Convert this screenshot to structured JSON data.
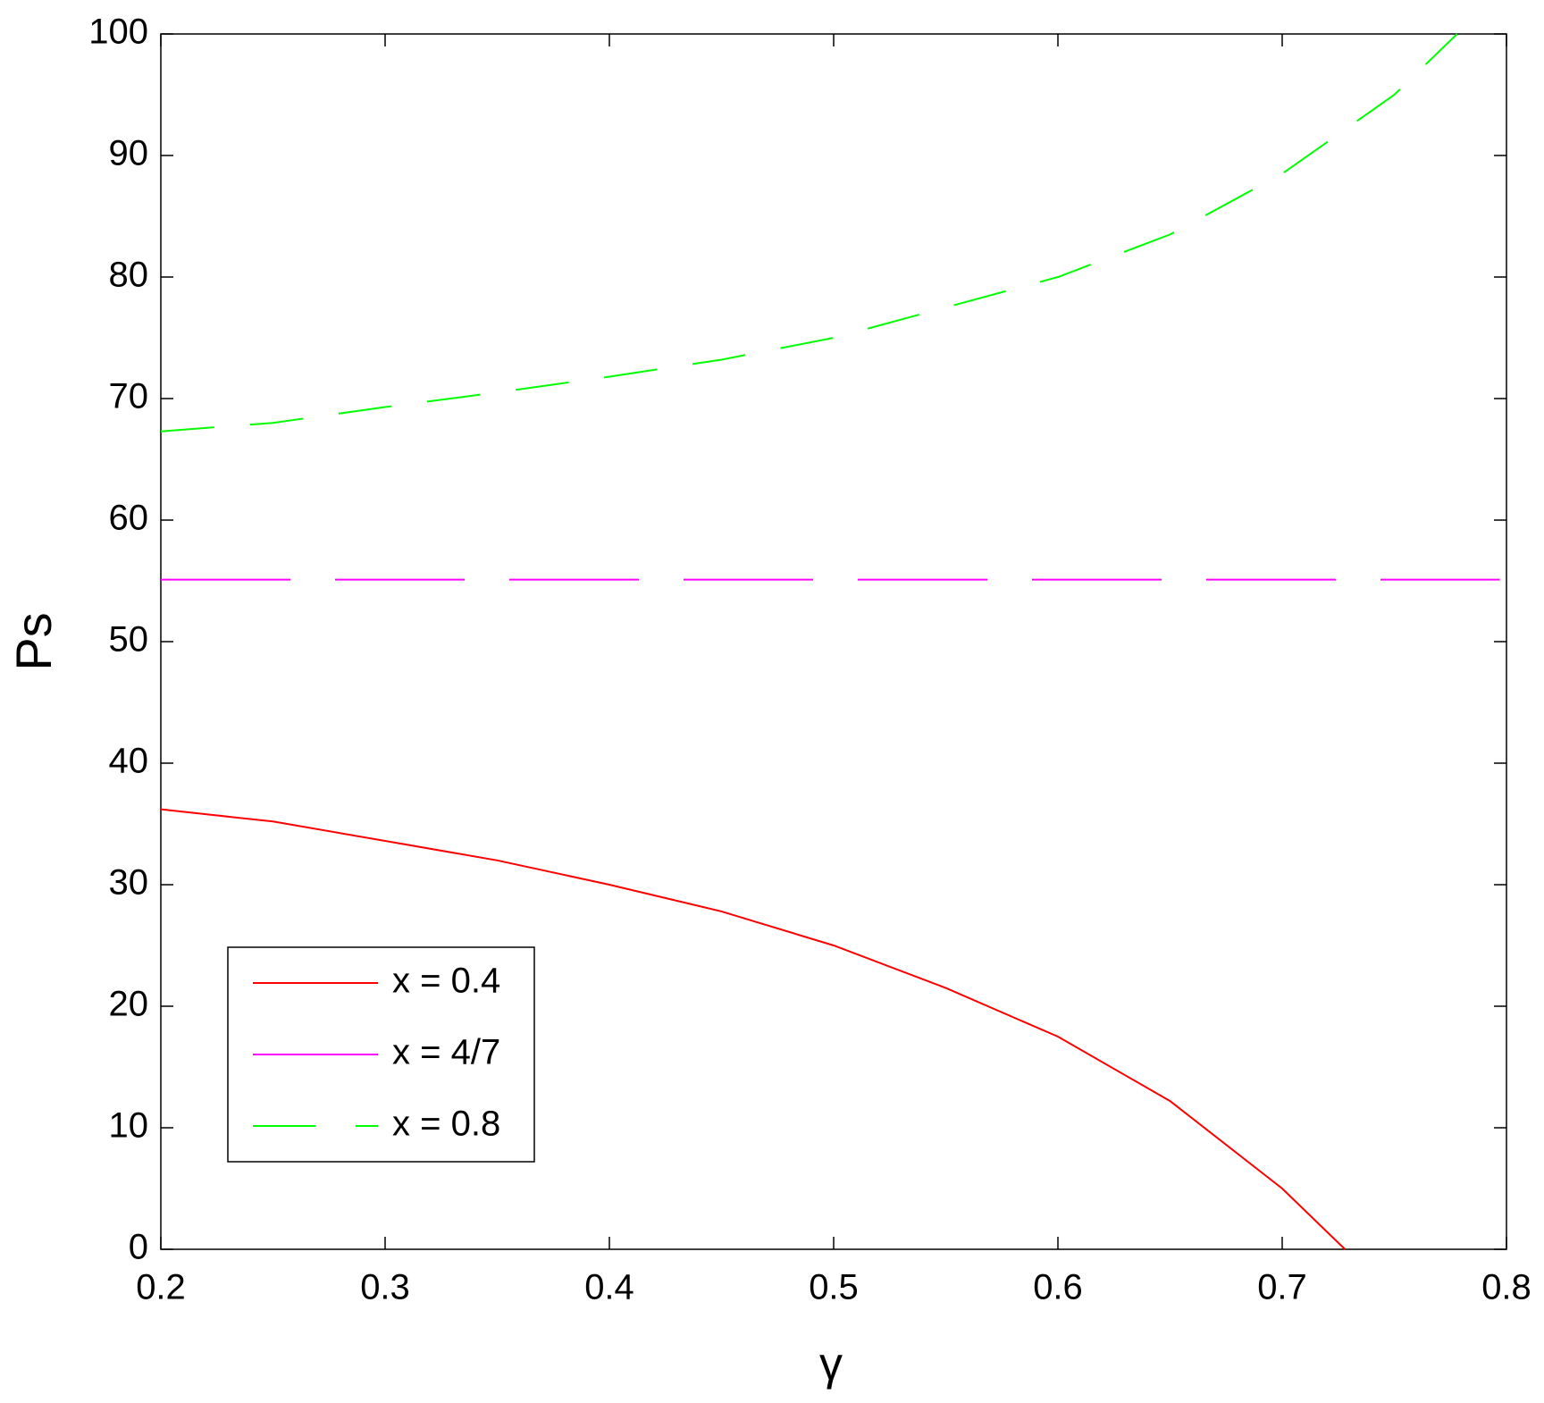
{
  "chart_data": {
    "type": "line",
    "xlabel": "γ",
    "ylabel": "Ps",
    "xlim": [
      0.2,
      0.8
    ],
    "ylim": [
      0,
      100
    ],
    "xticks": [
      0.2,
      0.3,
      0.4,
      0.5,
      0.6,
      0.7,
      0.8
    ],
    "yticks": [
      0,
      10,
      20,
      30,
      40,
      50,
      60,
      70,
      80,
      90,
      100
    ],
    "grid": false,
    "legend": "lower left",
    "series": [
      {
        "name": "x = 0.4",
        "color": "#ff0000",
        "style": "solid",
        "x": [
          0.2,
          0.22,
          0.25,
          0.3,
          0.35,
          0.4,
          0.45,
          0.5,
          0.55,
          0.6,
          0.65,
          0.7,
          0.728
        ],
        "values": [
          36.2,
          35.8,
          35.2,
          33.6,
          32,
          30,
          27.8,
          25,
          21.5,
          17.5,
          12.2,
          5,
          0
        ]
      },
      {
        "name": "x = 4/7",
        "color": "#ff00ff",
        "style": "long-dash",
        "x": [
          0.2,
          0.797
        ],
        "values": [
          55.1,
          55.1
        ]
      },
      {
        "name": "x = 0.8",
        "color": "#00ff00",
        "style": "dash",
        "x": [
          0.2,
          0.25,
          0.3,
          0.35,
          0.4,
          0.45,
          0.5,
          0.55,
          0.6,
          0.65,
          0.7,
          0.75,
          0.778
        ],
        "values": [
          67.3,
          68,
          69.3,
          70.5,
          71.8,
          73.2,
          75,
          77.5,
          80,
          83.5,
          88.5,
          95,
          100
        ]
      }
    ]
  }
}
